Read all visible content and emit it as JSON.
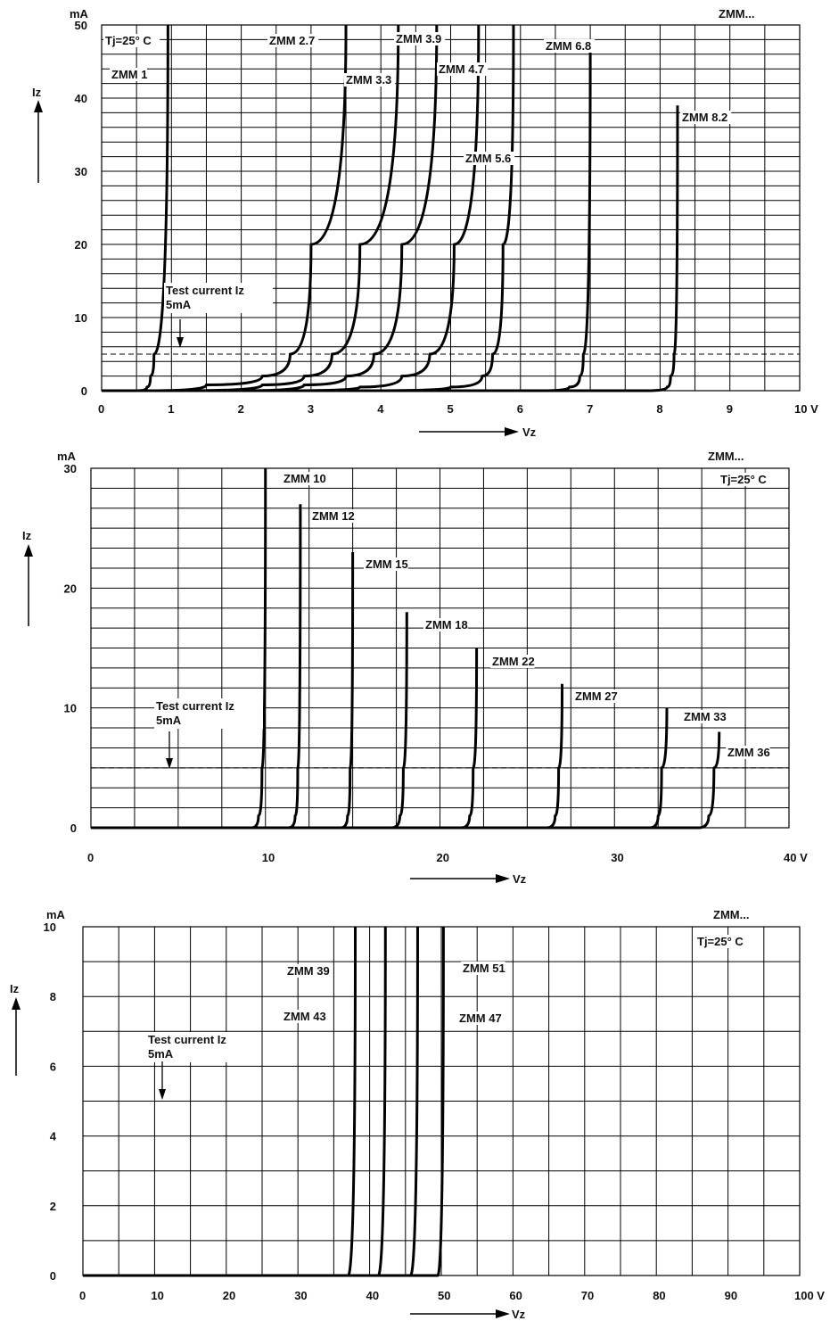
{
  "chart_data": [
    {
      "type": "line",
      "title": "ZMM...",
      "condition": "Tj=25° C",
      "xlabel": "Vz",
      "ylabel": "Iz",
      "yunit": "mA",
      "xunit": "V",
      "xlim": [
        0,
        10
      ],
      "ylim": [
        0,
        50
      ],
      "xticks": [
        0,
        1,
        2,
        3,
        4,
        5,
        6,
        7,
        8,
        9,
        10
      ],
      "xtick_labels": [
        "0",
        "1",
        "2",
        "3",
        "4",
        "5",
        "6",
        "7",
        "8",
        "9",
        "10"
      ],
      "yticks": [
        0,
        10,
        20,
        30,
        40,
        50
      ],
      "ytick_labels": [
        "0",
        "10",
        "20",
        "30",
        "40",
        "50"
      ],
      "grid": true,
      "test_current": {
        "value": 5,
        "label_line1": "Test current Iz",
        "label_line2": "5mA"
      },
      "series": [
        {
          "name": "ZMM 1",
          "x": [
            0,
            0.5,
            0.65,
            0.7,
            0.75,
            0.95
          ],
          "y": [
            0,
            0,
            0.5,
            2,
            5,
            50
          ]
        },
        {
          "name": "ZMM 2.7",
          "x": [
            0,
            0.7,
            1.5,
            2.3,
            2.7,
            3.0,
            3.5
          ],
          "y": [
            0,
            0,
            0.8,
            2,
            5,
            20,
            50
          ]
        },
        {
          "name": "ZMM 3.3",
          "x": [
            0,
            1.2,
            2.3,
            2.9,
            3.3,
            3.7,
            4.25
          ],
          "y": [
            0,
            0,
            0.8,
            2,
            5,
            20,
            50
          ]
        },
        {
          "name": "ZMM 3.9",
          "x": [
            0,
            2.0,
            2.9,
            3.5,
            3.9,
            4.3,
            4.8
          ],
          "y": [
            0,
            0,
            0.8,
            2,
            5,
            20,
            50
          ]
        },
        {
          "name": "ZMM 4.7",
          "x": [
            0,
            2.6,
            3.7,
            4.3,
            4.7,
            5.05,
            5.4
          ],
          "y": [
            0,
            0,
            0.5,
            2,
            5,
            20,
            50
          ]
        },
        {
          "name": "ZMM 5.6",
          "x": [
            0,
            3.8,
            5.0,
            5.45,
            5.6,
            5.75,
            5.9
          ],
          "y": [
            0,
            0,
            0.5,
            2,
            5,
            20,
            50
          ]
        },
        {
          "name": "ZMM 6.8",
          "x": [
            0,
            6.3,
            6.7,
            6.85,
            6.9,
            7.0
          ],
          "y": [
            0,
            0,
            0.5,
            2,
            5,
            48
          ]
        },
        {
          "name": "ZMM 8.2",
          "x": [
            0,
            7.8,
            8.1,
            8.15,
            8.2,
            8.25
          ],
          "y": [
            0,
            0,
            0.5,
            2,
            5,
            39
          ]
        }
      ],
      "labels": [
        "ZMM 1",
        "ZMM 2.7",
        "ZMM 3.3",
        "ZMM 3.9",
        "ZMM 4.7",
        "ZMM 5.6",
        "ZMM 6.8",
        "ZMM 8.2"
      ]
    },
    {
      "type": "line",
      "title": "ZMM...",
      "condition": "Tj=25° C",
      "xlabel": "Vz",
      "ylabel": "Iz",
      "yunit": "mA",
      "xunit": "V",
      "xlim": [
        0,
        40
      ],
      "ylim": [
        0,
        30
      ],
      "xticks": [
        0,
        10,
        20,
        30,
        40
      ],
      "xtick_labels": [
        "0",
        "10",
        "20",
        "30",
        "40"
      ],
      "yticks": [
        0,
        10,
        20,
        30
      ],
      "ytick_labels": [
        "0",
        "10",
        "20",
        "30"
      ],
      "grid": true,
      "test_current": {
        "value": 5,
        "label_line1": "Test current Iz",
        "label_line2": "5mA"
      },
      "series": [
        {
          "name": "ZMM 10",
          "x": [
            0,
            9.2,
            9.6,
            9.8,
            10.0
          ],
          "y": [
            0,
            0,
            1,
            5,
            30
          ]
        },
        {
          "name": "ZMM 12",
          "x": [
            0,
            11.3,
            11.7,
            11.85,
            12.0
          ],
          "y": [
            0,
            0,
            1,
            5,
            27
          ]
        },
        {
          "name": "ZMM 15",
          "x": [
            0,
            14.3,
            14.7,
            14.85,
            15.0
          ],
          "y": [
            0,
            0,
            1,
            5,
            23
          ]
        },
        {
          "name": "ZMM 18",
          "x": [
            0,
            17.2,
            17.7,
            17.9,
            18.1
          ],
          "y": [
            0,
            0,
            1,
            5,
            18
          ]
        },
        {
          "name": "ZMM 22",
          "x": [
            0,
            21.2,
            21.7,
            21.9,
            22.1
          ],
          "y": [
            0,
            0,
            1,
            5,
            15
          ]
        },
        {
          "name": "ZMM 27",
          "x": [
            0,
            26.1,
            26.6,
            26.8,
            27.0
          ],
          "y": [
            0,
            0,
            1,
            5,
            12
          ]
        },
        {
          "name": "ZMM 33",
          "x": [
            0,
            32.0,
            32.5,
            32.7,
            33.0
          ],
          "y": [
            0,
            0,
            1,
            5,
            10
          ]
        },
        {
          "name": "ZMM 36",
          "x": [
            0,
            34.8,
            35.4,
            35.7,
            36.0
          ],
          "y": [
            0,
            0,
            1,
            5,
            8
          ]
        }
      ],
      "labels": [
        "ZMM 10",
        "ZMM 12",
        "ZMM 15",
        "ZMM 18",
        "ZMM 22",
        "ZMM 27",
        "ZMM 33",
        "ZMM 36"
      ]
    },
    {
      "type": "line",
      "title": "ZMM...",
      "condition": "Tj=25° C",
      "xlabel": "Vz",
      "ylabel": "Iz",
      "yunit": "mA",
      "xunit": "V",
      "xlim": [
        0,
        100
      ],
      "ylim": [
        0,
        10
      ],
      "xticks": [
        0,
        10,
        20,
        30,
        40,
        50,
        60,
        70,
        80,
        90,
        100
      ],
      "xtick_labels": [
        "0",
        "10",
        "20",
        "30",
        "40",
        "50",
        "60",
        "70",
        "80",
        "90",
        "100"
      ],
      "yticks": [
        0,
        2,
        4,
        6,
        8,
        10
      ],
      "ytick_labels": [
        "0",
        "2",
        "4",
        "6",
        "8",
        "10"
      ],
      "grid": true,
      "test_current": {
        "value": 5,
        "label_line1": "Test current Iz",
        "label_line2": "5mA"
      },
      "series": [
        {
          "name": "ZMM 39",
          "x": [
            0,
            37.0,
            38.0
          ],
          "y": [
            0,
            0,
            10
          ]
        },
        {
          "name": "ZMM 43",
          "x": [
            0,
            41.2,
            42.2
          ],
          "y": [
            0,
            0,
            10
          ]
        },
        {
          "name": "ZMM 47",
          "x": [
            0,
            45.7,
            46.7
          ],
          "y": [
            0,
            0,
            10
          ]
        },
        {
          "name": "ZMM 51",
          "x": [
            0,
            49.5,
            50.3
          ],
          "y": [
            0,
            0,
            10
          ]
        }
      ],
      "labels": [
        "ZMM 39",
        "ZMM 43",
        "ZMM 47",
        "ZMM 51"
      ]
    }
  ]
}
